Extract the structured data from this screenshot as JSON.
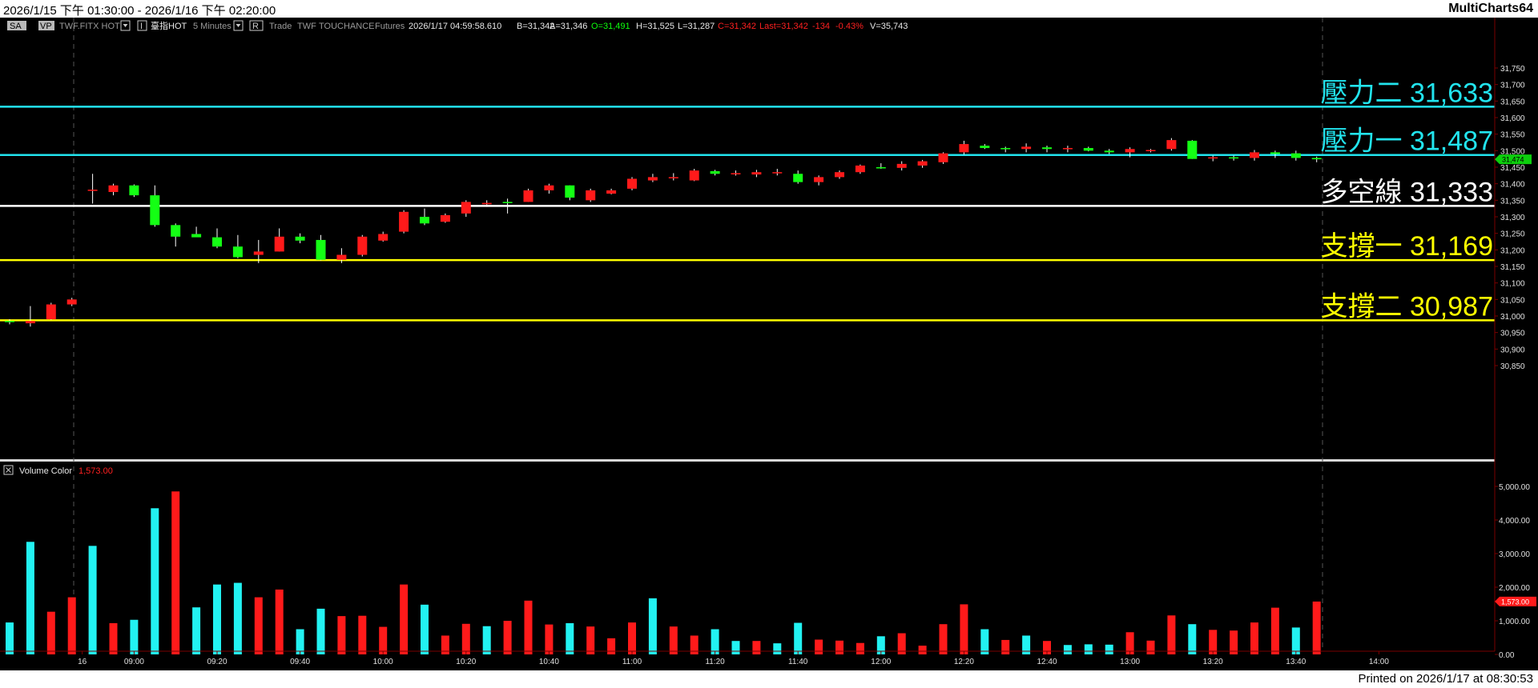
{
  "window": {
    "date_range": "2026/1/15 下午 01:30:00 - 2026/1/16 下午 02:20:00",
    "app_name": "MultiCharts64"
  },
  "toolbar": {
    "btn_sa": "SA",
    "btn_vp": "VP",
    "symbol": "TWF.FITX HOT",
    "btn_i": "I",
    "symbol2": "臺指HOT",
    "interval": "5 Minutes",
    "btn_r": "R",
    "data_type": "Trade",
    "exchange": "TWF",
    "source": "TOUCHANCE",
    "category": "Futures",
    "datetime": "2026/1/17  04:59:58.610",
    "bid": "B=31,342",
    "ask": "A=31,346",
    "open": "O=31,491",
    "high": "H=31,525",
    "low": "L=31,287",
    "close": "C=31,342",
    "last": "Last=31,342",
    "change": "-134",
    "pct": "-0.43%",
    "volume": "V=35,743"
  },
  "levels": [
    {
      "label": "壓力二 31,633",
      "price": 31633,
      "color": "#22e4ee"
    },
    {
      "label": "壓力一 31,487",
      "price": 31487,
      "color": "#22e4ee"
    },
    {
      "label": "多空線 31,333",
      "price": 31333,
      "color": "#ffffff"
    },
    {
      "label": "支撐一 31,169",
      "price": 31169,
      "color": "#ffff00"
    },
    {
      "label": "支撐二 30,987",
      "price": 30987,
      "color": "#ffff00"
    }
  ],
  "current_price": "31,474",
  "volume_panel": {
    "name": "Volume Color",
    "value": "1,573.00",
    "last_label": "1,573.00"
  },
  "colors": {
    "up": "#ff1a1a",
    "down": "#14ff14",
    "vol_up": "#ff1a1a",
    "vol_down": "#22f2f2",
    "axis": "#7a0000"
  },
  "chart_data": {
    "type": "candlestick",
    "price_axis": {
      "ticks": [
        "31,750",
        "31,700",
        "31,650",
        "31,600",
        "31,550",
        "31,500",
        "31,450",
        "31,400",
        "31,350",
        "31,300",
        "31,250",
        "31,200",
        "31,150",
        "31,100",
        "31,050",
        "31,000",
        "30,950",
        "30,900",
        "30,850"
      ]
    },
    "volume_axis": {
      "ticks": [
        "5,000.00",
        "4,000.00",
        "3,000.00",
        "2,000.00",
        "1,000.00",
        "0.00"
      ]
    },
    "time_ticks": [
      {
        "label": "16",
        "bar": 3.5
      },
      {
        "label": "09:00",
        "bar": 6
      },
      {
        "label": "09:20",
        "bar": 10
      },
      {
        "label": "09:40",
        "bar": 14
      },
      {
        "label": "10:00",
        "bar": 18
      },
      {
        "label": "10:20",
        "bar": 22
      },
      {
        "label": "10:40",
        "bar": 26
      },
      {
        "label": "11:00",
        "bar": 30
      },
      {
        "label": "11:20",
        "bar": 34
      },
      {
        "label": "11:40",
        "bar": 38
      },
      {
        "label": "12:00",
        "bar": 42
      },
      {
        "label": "12:20",
        "bar": 46
      },
      {
        "label": "12:40",
        "bar": 50
      },
      {
        "label": "13:00",
        "bar": 54
      },
      {
        "label": "13:20",
        "bar": 58
      },
      {
        "label": "13:40",
        "bar": 62
      },
      {
        "label": "14:00",
        "bar": 66
      }
    ],
    "candles": [
      [
        30985,
        30990,
        30975,
        30983
      ],
      [
        30978,
        31030,
        30968,
        30985
      ],
      [
        30990,
        31040,
        30988,
        31035
      ],
      [
        31035,
        31055,
        31030,
        31050
      ],
      [
        31380,
        31430,
        31340,
        31382
      ],
      [
        31375,
        31400,
        31365,
        31395
      ],
      [
        31395,
        31398,
        31360,
        31365
      ],
      [
        31365,
        31395,
        31270,
        31275
      ],
      [
        31275,
        31280,
        31210,
        31240
      ],
      [
        31248,
        31270,
        31240,
        31238
      ],
      [
        31238,
        31265,
        31205,
        31210
      ],
      [
        31210,
        31245,
        31175,
        31178
      ],
      [
        31185,
        31230,
        31160,
        31195
      ],
      [
        31195,
        31265,
        31195,
        31240
      ],
      [
        31240,
        31250,
        31220,
        31228
      ],
      [
        31230,
        31245,
        31168,
        31170
      ],
      [
        31170,
        31205,
        31160,
        31185
      ],
      [
        31185,
        31245,
        31180,
        31240
      ],
      [
        31228,
        31255,
        31225,
        31248
      ],
      [
        31255,
        31320,
        31250,
        31315
      ],
      [
        31300,
        31325,
        31275,
        31280
      ],
      [
        31285,
        31310,
        31282,
        31305
      ],
      [
        31310,
        31350,
        31300,
        31345
      ],
      [
        31338,
        31350,
        31330,
        31342
      ],
      [
        31345,
        31355,
        31310,
        31343
      ],
      [
        31345,
        31385,
        31345,
        31380
      ],
      [
        31380,
        31400,
        31370,
        31395
      ],
      [
        31395,
        31395,
        31350,
        31358
      ],
      [
        31350,
        31385,
        31345,
        31380
      ],
      [
        31370,
        31385,
        31368,
        31380
      ],
      [
        31385,
        31420,
        31380,
        31415
      ],
      [
        31410,
        31430,
        31405,
        31420
      ],
      [
        31418,
        31432,
        31410,
        31420
      ],
      [
        31410,
        31445,
        31408,
        31440
      ],
      [
        31438,
        31442,
        31425,
        31430
      ],
      [
        31430,
        31440,
        31425,
        31432
      ],
      [
        31428,
        31442,
        31420,
        31435
      ],
      [
        31432,
        31445,
        31425,
        31435
      ],
      [
        31430,
        31440,
        31400,
        31405
      ],
      [
        31405,
        31425,
        31395,
        31420
      ],
      [
        31420,
        31440,
        31415,
        31435
      ],
      [
        31435,
        31458,
        31430,
        31455
      ],
      [
        31450,
        31462,
        31445,
        31448
      ],
      [
        31448,
        31468,
        31440,
        31460
      ],
      [
        31455,
        31472,
        31448,
        31468
      ],
      [
        31465,
        31495,
        31460,
        31492
      ],
      [
        31495,
        31530,
        31488,
        31520
      ],
      [
        31515,
        31520,
        31505,
        31508
      ],
      [
        31508,
        31512,
        31495,
        31505
      ],
      [
        31505,
        31522,
        31495,
        31512
      ],
      [
        31510,
        31515,
        31495,
        31505
      ],
      [
        31505,
        31515,
        31495,
        31508
      ],
      [
        31508,
        31512,
        31498,
        31500
      ],
      [
        31500,
        31505,
        31490,
        31495
      ],
      [
        31495,
        31510,
        31480,
        31505
      ],
      [
        31500,
        31505,
        31495,
        31502
      ],
      [
        31505,
        31538,
        31500,
        31532
      ],
      [
        31530,
        31532,
        31475,
        31475
      ],
      [
        31478,
        31485,
        31468,
        31480
      ],
      [
        31480,
        31485,
        31470,
        31478
      ],
      [
        31478,
        31502,
        31470,
        31495
      ],
      [
        31495,
        31500,
        31478,
        31490
      ],
      [
        31492,
        31500,
        31470,
        31478
      ],
      [
        31478,
        31482,
        31465,
        31474
      ]
    ],
    "volume": [
      [
        950,
        0
      ],
      [
        3350,
        0
      ],
      [
        1270,
        1
      ],
      [
        1700,
        1
      ],
      [
        3230,
        0
      ],
      [
        930,
        1
      ],
      [
        1030,
        0
      ],
      [
        4350,
        0
      ],
      [
        4850,
        1
      ],
      [
        1400,
        0
      ],
      [
        2080,
        0
      ],
      [
        2130,
        0
      ],
      [
        1700,
        1
      ],
      [
        1930,
        1
      ],
      [
        750,
        0
      ],
      [
        1360,
        0
      ],
      [
        1140,
        1
      ],
      [
        1150,
        1
      ],
      [
        820,
        1
      ],
      [
        2080,
        1
      ],
      [
        1480,
        0
      ],
      [
        560,
        1
      ],
      [
        910,
        1
      ],
      [
        840,
        0
      ],
      [
        1000,
        1
      ],
      [
        1600,
        1
      ],
      [
        890,
        1
      ],
      [
        930,
        0
      ],
      [
        830,
        1
      ],
      [
        480,
        1
      ],
      [
        950,
        1
      ],
      [
        1670,
        0
      ],
      [
        830,
        1
      ],
      [
        560,
        1
      ],
      [
        750,
        0
      ],
      [
        400,
        0
      ],
      [
        400,
        1
      ],
      [
        330,
        0
      ],
      [
        940,
        0
      ],
      [
        440,
        1
      ],
      [
        410,
        1
      ],
      [
        340,
        1
      ],
      [
        540,
        0
      ],
      [
        630,
        1
      ],
      [
        260,
        1
      ],
      [
        900,
        1
      ],
      [
        1490,
        1
      ],
      [
        750,
        0
      ],
      [
        430,
        1
      ],
      [
        560,
        0
      ],
      [
        400,
        1
      ],
      [
        280,
        0
      ],
      [
        300,
        0
      ],
      [
        290,
        0
      ],
      [
        660,
        1
      ],
      [
        410,
        1
      ],
      [
        1160,
        1
      ],
      [
        900,
        0
      ],
      [
        730,
        1
      ],
      [
        710,
        1
      ],
      [
        950,
        1
      ],
      [
        1390,
        1
      ],
      [
        800,
        0
      ],
      [
        1573,
        1
      ]
    ]
  }
}
